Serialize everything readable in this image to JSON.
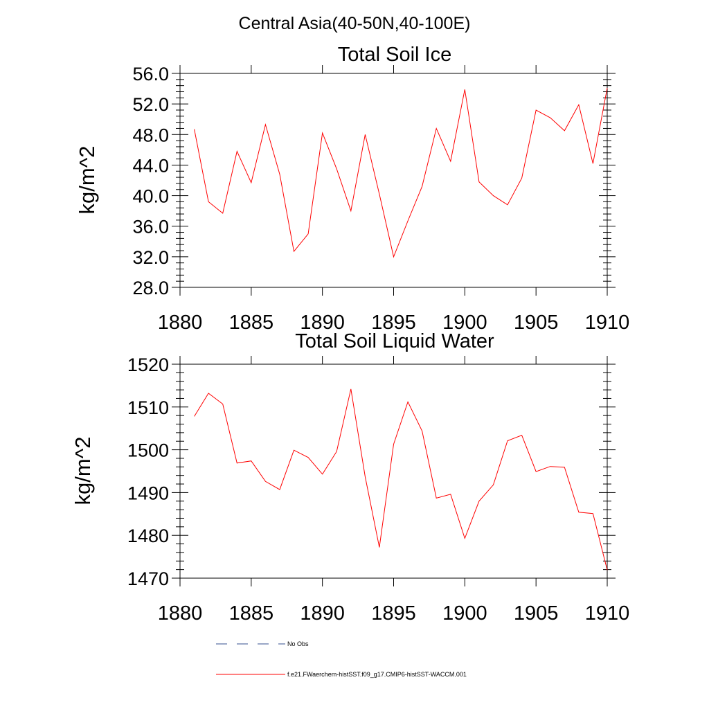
{
  "suptitle": "Central Asia(40-50N,40-100E)",
  "legend": [
    {
      "label": "No Obs",
      "color": "#334d8c",
      "style": "dashed"
    },
    {
      "label": "f.e21.FWaerchem-histSST.f09_g17.CMIP6-histSST-WACCM.001",
      "color": "#ff0000",
      "style": "solid"
    }
  ],
  "chart_data": [
    {
      "type": "line",
      "title": "Total Soil Ice",
      "ylabel": "kg/m^2",
      "xlabel": "",
      "xlim": [
        1880,
        1910
      ],
      "ylim": [
        28,
        56
      ],
      "xticks": [
        1880,
        1885,
        1890,
        1895,
        1900,
        1905,
        1910
      ],
      "xtick_labels": [
        "1880",
        "1885",
        "1890",
        "1895",
        "1900",
        "1905",
        "1910"
      ],
      "yticks": [
        28,
        32,
        36,
        40,
        44,
        48,
        52,
        56
      ],
      "ytick_labels": [
        "28.0",
        "32.0",
        "36.0",
        "40.0",
        "44.0",
        "48.0",
        "52.0",
        "56.0"
      ],
      "x": [
        1881,
        1882,
        1883,
        1884,
        1885,
        1886,
        1887,
        1888,
        1889,
        1890,
        1891,
        1892,
        1893,
        1894,
        1895,
        1896,
        1897,
        1898,
        1899,
        1900,
        1901,
        1902,
        1903,
        1904,
        1905,
        1906,
        1907,
        1908,
        1909,
        1910
      ],
      "series": [
        {
          "color": "#ff0000",
          "values": [
            48.7,
            39.2,
            37.7,
            45.8,
            41.7,
            49.3,
            42.8,
            32.7,
            35.0,
            48.2,
            43.5,
            38.0,
            48.0,
            40.2,
            32.0,
            36.7,
            41.2,
            48.8,
            44.5,
            53.9,
            41.8,
            40.0,
            38.8,
            42.3,
            51.2,
            50.2,
            48.5,
            51.9,
            44.2,
            54.1
          ]
        }
      ]
    },
    {
      "type": "line",
      "title": "Total Soil Liquid Water",
      "ylabel": "kg/m^2",
      "xlabel": "",
      "xlim": [
        1880,
        1910
      ],
      "ylim": [
        1470,
        1520
      ],
      "xticks": [
        1880,
        1885,
        1890,
        1895,
        1900,
        1905,
        1910
      ],
      "xtick_labels": [
        "1880",
        "1885",
        "1890",
        "1895",
        "1900",
        "1905",
        "1910"
      ],
      "yticks": [
        1470,
        1480,
        1490,
        1500,
        1510,
        1520
      ],
      "ytick_labels": [
        "1470",
        "1480",
        "1490",
        "1500",
        "1510",
        "1520"
      ],
      "x": [
        1881,
        1882,
        1883,
        1884,
        1885,
        1886,
        1887,
        1888,
        1889,
        1890,
        1891,
        1892,
        1893,
        1894,
        1895,
        1896,
        1897,
        1898,
        1899,
        1900,
        1901,
        1902,
        1903,
        1904,
        1905,
        1906,
        1907,
        1908,
        1909,
        1910
      ],
      "series": [
        {
          "color": "#ff0000",
          "values": [
            1507.8,
            1513.2,
            1510.7,
            1496.9,
            1497.4,
            1492.6,
            1490.7,
            1499.9,
            1498.2,
            1494.3,
            1499.6,
            1514.2,
            1493.7,
            1477.2,
            1501.3,
            1511.2,
            1504.4,
            1488.7,
            1489.6,
            1479.3,
            1488.0,
            1491.8,
            1502.1,
            1503.4,
            1494.9,
            1496.1,
            1495.9,
            1485.4,
            1485.1,
            1471.9
          ]
        }
      ]
    }
  ]
}
